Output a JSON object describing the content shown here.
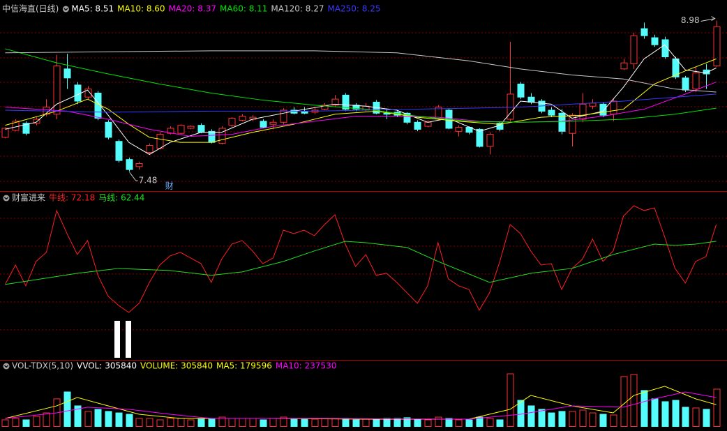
{
  "chart_data": [
    {
      "type": "candlestick",
      "title": "中信海直(日线)",
      "up_color": "#ff3232",
      "down_color": "#54fcfc",
      "xlim": [
        -0.5,
        69.5
      ],
      "ylim": [
        7.3,
        9.06
      ],
      "open": [
        7.82,
        7.89,
        7.96,
        7.96,
        8.05,
        8.05,
        8.5,
        8.34,
        8.22,
        8.26,
        7.97,
        7.78,
        7.6,
        7.53,
        7.67,
        7.71,
        7.86,
        7.86,
        7.91,
        7.94,
        7.88,
        7.76,
        7.94,
        7.99,
        8.0,
        7.98,
        7.95,
        7.97,
        8.09,
        8.08,
        8.07,
        8.1,
        8.14,
        8.24,
        8.14,
        8.09,
        8.17,
        8.06,
        8.07,
        8.06,
        7.97,
        7.93,
        8.01,
        8.09,
        7.88,
        7.92,
        7.9,
        7.73,
        7.96,
        8.0,
        8.35,
        8.22,
        8.18,
        8.09,
        8.06,
        7.86,
        8.0,
        8.13,
        8.15,
        8.05,
        8.5,
        8.55,
        8.9,
        8.81,
        8.79,
        8.6,
        8.41,
        8.3,
        8.49,
        8.53
      ],
      "high": [
        7.92,
        8.0,
        7.98,
        8.02,
        8.2,
        8.64,
        8.65,
        8.37,
        8.33,
        8.28,
        7.99,
        7.8,
        7.62,
        7.58,
        7.76,
        7.87,
        7.93,
        7.95,
        7.94,
        7.96,
        7.9,
        7.93,
        8.02,
        8.05,
        8.04,
        8.0,
        8.0,
        8.11,
        8.12,
        8.12,
        8.11,
        8.16,
        8.24,
        8.26,
        8.16,
        8.16,
        8.19,
        8.1,
        8.08,
        8.07,
        7.99,
        7.99,
        8.14,
        8.11,
        7.94,
        7.93,
        7.91,
        7.87,
        7.98,
        8.77,
        8.37,
        8.26,
        8.2,
        8.12,
        8.1,
        8.06,
        8.26,
        8.2,
        8.17,
        8.2,
        8.6,
        8.86,
        8.96,
        8.84,
        8.82,
        8.62,
        8.43,
        8.52,
        8.55,
        8.98
      ],
      "low": [
        7.81,
        7.88,
        7.84,
        7.94,
        8.03,
        8.0,
        8.3,
        8.15,
        8.2,
        7.99,
        7.8,
        7.57,
        7.48,
        7.5,
        7.65,
        7.7,
        7.85,
        7.85,
        7.9,
        7.86,
        7.76,
        7.75,
        7.92,
        7.98,
        7.98,
        7.91,
        7.9,
        7.95,
        8.05,
        8.05,
        8.05,
        8.09,
        8.12,
        8.08,
        8.08,
        8.08,
        8.05,
        8.0,
        8.02,
        7.95,
        7.88,
        7.92,
        8.0,
        7.9,
        7.83,
        7.85,
        7.72,
        7.65,
        7.88,
        7.98,
        8.2,
        8.15,
        8.06,
        8.02,
        7.85,
        7.73,
        7.97,
        8.1,
        8.02,
        7.98,
        8.49,
        8.5,
        8.8,
        8.72,
        8.6,
        8.4,
        8.27,
        8.27,
        8.3,
        8.52
      ],
      "close": [
        7.91,
        7.98,
        7.86,
        8.0,
        8.12,
        8.53,
        8.41,
        8.18,
        8.3,
        8.01,
        7.82,
        7.59,
        7.5,
        7.56,
        7.74,
        7.85,
        7.91,
        7.94,
        7.93,
        7.87,
        7.77,
        7.91,
        8.01,
        8.03,
        8.02,
        7.92,
        7.97,
        8.09,
        8.06,
        8.06,
        8.09,
        8.14,
        8.2,
        8.1,
        8.1,
        8.13,
        8.06,
        8.05,
        8.04,
        7.97,
        7.9,
        7.97,
        8.12,
        7.91,
        7.92,
        7.87,
        7.73,
        7.85,
        7.9,
        8.25,
        8.22,
        8.17,
        8.08,
        8.04,
        7.88,
        8.04,
        8.15,
        8.16,
        8.04,
        8.18,
        8.56,
        8.83,
        8.83,
        8.74,
        8.62,
        8.42,
        8.29,
        8.46,
        8.45,
        8.92
      ],
      "series": [
        {
          "name": "MA5: 8.51",
          "color": "#ffffff",
          "x": [
            0,
            3,
            5,
            8,
            10,
            12,
            14,
            16,
            19,
            21,
            24,
            28,
            32,
            35,
            38,
            41,
            43,
            46,
            48,
            50,
            53,
            55,
            58,
            60,
            62,
            64,
            66,
            68,
            69
          ],
          "values": [
            7.9,
            7.97,
            8.15,
            8.29,
            8.04,
            7.77,
            7.65,
            7.77,
            7.87,
            7.87,
            8.0,
            8.08,
            8.15,
            8.13,
            8.09,
            7.97,
            8.01,
            7.88,
            7.94,
            8.18,
            8.15,
            8.01,
            8.08,
            8.32,
            8.6,
            8.74,
            8.49,
            8.46,
            8.51
          ]
        },
        {
          "name": "MA10: 8.60",
          "color": "#ffff00",
          "x": [
            0,
            5,
            8,
            10,
            12,
            14,
            17,
            20,
            24,
            28,
            32,
            36,
            40,
            44,
            48,
            52,
            56,
            60,
            63,
            66,
            69
          ],
          "values": [
            7.94,
            8.08,
            8.2,
            8.1,
            7.95,
            7.82,
            7.77,
            7.77,
            7.87,
            7.95,
            8.05,
            8.08,
            8.02,
            7.98,
            7.95,
            8.02,
            8.04,
            8.1,
            8.35,
            8.48,
            8.6
          ]
        },
        {
          "name": "MA20: 8.37",
          "color": "#ff00ff",
          "x": [
            0,
            3,
            6,
            10,
            14,
            18,
            22,
            26,
            30,
            34,
            38,
            42,
            46,
            50,
            54,
            58,
            62,
            66,
            69
          ],
          "values": [
            8.12,
            8.1,
            8.08,
            8.0,
            7.9,
            7.83,
            7.85,
            7.93,
            7.98,
            8.03,
            8.03,
            8.02,
            7.98,
            7.97,
            7.98,
            8.03,
            8.1,
            8.25,
            8.37
          ]
        },
        {
          "name": "MA60: 8.11",
          "color": "#00e600",
          "x": [
            0,
            5,
            10,
            15,
            20,
            25,
            30,
            35,
            40,
            45,
            50,
            55,
            60,
            65,
            69
          ],
          "values": [
            8.7,
            8.56,
            8.45,
            8.35,
            8.26,
            8.19,
            8.14,
            8.1,
            8.03,
            7.98,
            7.97,
            7.98,
            8.0,
            8.05,
            8.11
          ]
        },
        {
          "name": "MA120: 8.27",
          "color": "#c8c8c8",
          "x": [
            0,
            10,
            20,
            30,
            38,
            45,
            50,
            55,
            60,
            65,
            69
          ],
          "values": [
            8.66,
            8.67,
            8.68,
            8.68,
            8.66,
            8.58,
            8.5,
            8.44,
            8.4,
            8.3,
            8.27
          ]
        },
        {
          "name": "MA250: 8.25",
          "color": "#3a3aff",
          "x": [
            0,
            10,
            20,
            30,
            40,
            50,
            60,
            69
          ],
          "values": [
            8.09,
            8.07,
            8.08,
            8.08,
            8.1,
            8.12,
            8.18,
            8.25
          ]
        }
      ],
      "annotations": [
        {
          "label": "8.98",
          "value": 8.98,
          "x": 69
        },
        {
          "label": "7.48",
          "value": 7.48,
          "x": 12
        },
        {
          "label": "财",
          "x": 16
        }
      ]
    },
    {
      "type": "line",
      "title": "财富进来",
      "xlim": [
        -0.5,
        69.5
      ],
      "ylim": [
        -6.2,
        89.2
      ],
      "series": [
        {
          "name": "牛线: 72.18",
          "color": "#ff2020",
          "values": [
            37.3,
            48.6,
            36.5,
            50.7,
            56.0,
            80.3,
            66.9,
            54.7,
            62.8,
            42.6,
            30.4,
            25.1,
            21.0,
            26.3,
            38.5,
            48.6,
            53.9,
            56.0,
            52.7,
            49.4,
            38.5,
            51.9,
            60.8,
            62.8,
            56.8,
            49.4,
            52.7,
            68.9,
            66.9,
            68.9,
            65.7,
            72.2,
            77.9,
            60.8,
            47.8,
            54.7,
            42.6,
            43.8,
            38.5,
            32.4,
            26.3,
            36.5,
            61.6,
            40.5,
            36.5,
            34.4,
            22.3,
            32.4,
            50.7,
            72.2,
            66.9,
            56.8,
            48.6,
            49.4,
            34.4,
            46.6,
            51.9,
            63.7,
            50.7,
            56.8,
            77.1,
            83.1,
            80.3,
            81.9,
            64.9,
            46.6,
            38.1,
            50.7,
            53.5,
            72.18
          ]
        },
        {
          "name": "马线: 62.44",
          "color": "#20e020",
          "x": [
            0,
            7,
            11,
            16,
            20,
            23,
            27,
            30,
            33,
            35,
            39,
            42,
            47,
            51,
            55,
            59,
            63,
            65,
            67,
            69
          ],
          "values": [
            37.3,
            43.8,
            46.6,
            45.4,
            42.6,
            44.6,
            50.7,
            56.8,
            62.4,
            61.6,
            58.8,
            50.7,
            38.5,
            43.8,
            46.6,
            54.7,
            60.8,
            60.0,
            60.8,
            62.44
          ]
        }
      ]
    },
    {
      "type": "bar",
      "title": "VOL-TDX(5,10)",
      "vvol_label": "VVOL: 305840",
      "up_color": "#ff3232",
      "down_color": "#54fcfc",
      "xlim": [
        -0.5,
        69.5
      ],
      "ylim": [
        0,
        464000
      ],
      "bars": {
        "name": "VOLUME: 305840",
        "color": "#ffff00",
        "values": [
          56600,
          68000,
          56600,
          85000,
          113000,
          227000,
          283000,
          170000,
          125000,
          142000,
          125000,
          113000,
          102000,
          68000,
          68000,
          56600,
          68000,
          68000,
          56600,
          68000,
          68000,
          79000,
          68000,
          68000,
          68000,
          56600,
          68000,
          79000,
          68000,
          68000,
          62000,
          68000,
          68000,
          68000,
          56600,
          62000,
          56600,
          68000,
          68000,
          74000,
          56600,
          56600,
          79000,
          68000,
          56600,
          56600,
          79000,
          68000,
          56600,
          430000,
          215000,
          170000,
          142000,
          113000,
          125000,
          125000,
          136000,
          113000,
          102000,
          96000,
          408000,
          425000,
          295000,
          227000,
          204000,
          215000,
          159000,
          153000,
          142000,
          305840
        ]
      },
      "series": [
        {
          "name": "MA5: 179596",
          "color": "#ffff00",
          "x": [
            0,
            5,
            7,
            10,
            13,
            17,
            25,
            35,
            45,
            49,
            51,
            55,
            59,
            61,
            64,
            67,
            69
          ],
          "values": [
            68000,
            170000,
            238000,
            170000,
            102000,
            68000,
            68000,
            62000,
            62000,
            142000,
            255000,
            170000,
            113000,
            255000,
            329000,
            227000,
            179596
          ]
        },
        {
          "name": "MA10: 237530",
          "color": "#ff00ff",
          "x": [
            0,
            5,
            8,
            12,
            16,
            20,
            30,
            45,
            50,
            55,
            60,
            63,
            66,
            69
          ],
          "values": [
            68000,
            113000,
            159000,
            142000,
            102000,
            68000,
            68000,
            62000,
            102000,
            170000,
            159000,
            227000,
            283000,
            237530
          ]
        }
      ]
    }
  ]
}
